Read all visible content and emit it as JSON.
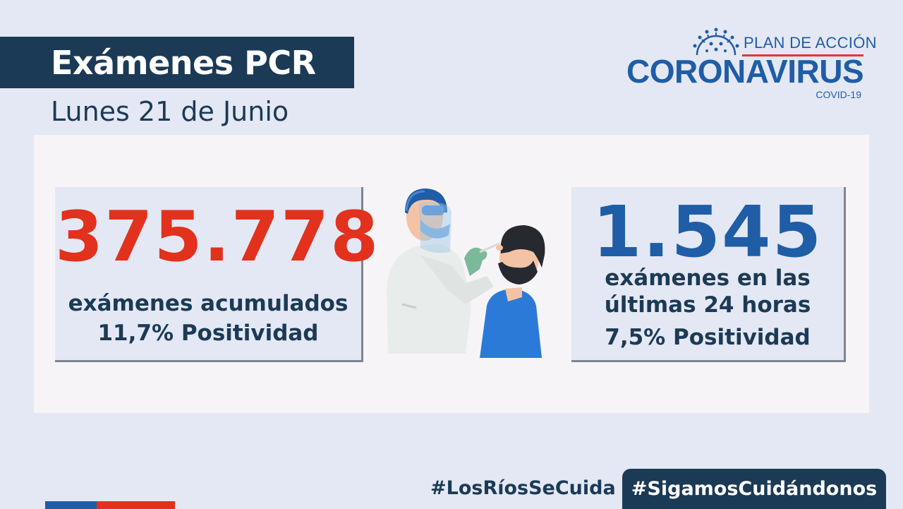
{
  "header": {
    "title": "Exámenes PCR",
    "date": "Lunes 21 de Junio"
  },
  "logo": {
    "plan": "PLAN DE ACCIÓN",
    "name": "CORONAVIRUS",
    "sub": "COVID-19",
    "icon": "virus-icon"
  },
  "left_card": {
    "value": "375.778",
    "line1": "exámenes  acumulados",
    "line2": "11,7% Positividad"
  },
  "right_card": {
    "value": "1.545",
    "line1": "exámenes en las",
    "line2": "últimas 24 horas",
    "line3": "7,5% Positividad"
  },
  "illustration": {
    "icon": "pcr-swab-test-illustration"
  },
  "footer": {
    "hashtag1": "#LosRíosSeCuida",
    "hashtag2": "#SigamosCuidándonos"
  },
  "colors": {
    "navy": "#1b3a55",
    "blue": "#1f5da6",
    "red": "#e2311c",
    "background": "#e4e8f4"
  }
}
